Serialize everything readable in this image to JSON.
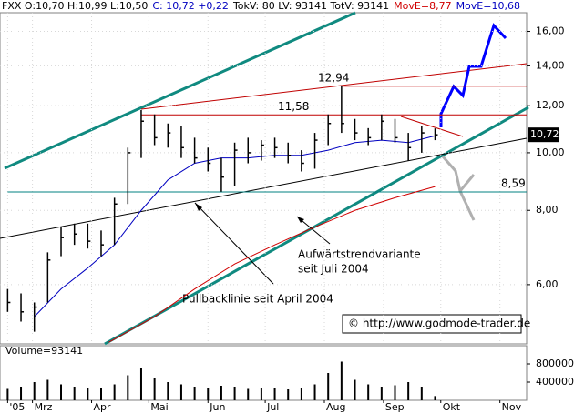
{
  "chart_data": {
    "type": "ohlc",
    "header": [
      {
        "text": "FXX O:10,70 H:10,99 L:10,50",
        "color": "#000000"
      },
      {
        "text": "C: 10,72 +0,22",
        "color": "#0000c0"
      },
      {
        "text": "TokV: 80 LV: 93141 TotV: 93141",
        "color": "#000000"
      },
      {
        "text": "MovE=8,77",
        "color": "#d00000"
      },
      {
        "text": "MovE=10,68",
        "color": "#0000c0"
      }
    ],
    "x": [
      47,
      54,
      61,
      68,
      75,
      82,
      89,
      96,
      103,
      110,
      117,
      124,
      131,
      138,
      145,
      152,
      159,
      166,
      173,
      180,
      187,
      194,
      201,
      208,
      215,
      222,
      229,
      236,
      243,
      250,
      257,
      264,
      271
    ],
    "high": [
      5.9,
      5.8,
      5.6,
      6.8,
      7.5,
      7.6,
      7.6,
      7.4,
      8.4,
      10.2,
      11.8,
      11.6,
      11.2,
      11.1,
      10.6,
      10.2,
      9.8,
      10.4,
      10.6,
      10.5,
      10.6,
      10.4,
      10.1,
      10.8,
      11.6,
      12.94,
      11.4,
      11.0,
      11.6,
      11.4,
      10.8,
      11.1,
      10.99
    ],
    "low": [
      5.4,
      5.2,
      5.0,
      5.6,
      6.7,
      7.0,
      6.9,
      6.7,
      7.0,
      8.2,
      9.8,
      10.3,
      10.2,
      9.8,
      9.6,
      9.3,
      8.6,
      8.8,
      9.6,
      9.7,
      9.8,
      9.6,
      9.3,
      9.4,
      10.3,
      10.8,
      10.5,
      10.3,
      10.5,
      10.4,
      9.7,
      10.0,
      10.5
    ],
    "close": [
      5.6,
      5.4,
      5.5,
      6.6,
      7.2,
      7.3,
      7.1,
      7.0,
      8.2,
      10.0,
      11.3,
      10.6,
      10.8,
      10.2,
      9.8,
      9.6,
      9.1,
      10.1,
      10.0,
      10.3,
      10.2,
      9.9,
      9.6,
      10.5,
      11.2,
      11.2,
      10.8,
      10.6,
      11.3,
      10.6,
      10.2,
      10.8,
      10.72
    ],
    "averages": [
      {
        "color": "#0000c0",
        "x": [
          61,
          75,
          89,
          103,
          117,
          131,
          145,
          159,
          173,
          187,
          201,
          215,
          229,
          243,
          257,
          271
        ],
        "values": [
          5.3,
          5.9,
          6.4,
          7.0,
          8.0,
          9.0,
          9.6,
          9.8,
          9.8,
          9.9,
          9.9,
          10.1,
          10.4,
          10.5,
          10.4,
          10.68
        ]
      },
      {
        "color": "#d00000",
        "x": [
          100,
          124,
          145,
          166,
          187,
          208,
          229,
          250,
          271
        ],
        "values": [
          4.8,
          5.3,
          5.9,
          6.5,
          7.0,
          7.5,
          8.0,
          8.4,
          8.77
        ]
      }
    ],
    "bar_color": "#000000",
    "xlim": [
      43,
      319
    ],
    "xticks": [
      {
        "value": 47,
        "label": "'05"
      },
      {
        "value": 60,
        "label": "Mrz"
      },
      {
        "value": 91,
        "label": "Apr"
      },
      {
        "value": 121,
        "label": "Mai"
      },
      {
        "value": 152,
        "label": "Jun"
      },
      {
        "value": 182,
        "label": "Jul"
      },
      {
        "value": 213,
        "label": "Aug"
      },
      {
        "value": 244,
        "label": "Sep"
      },
      {
        "value": 274,
        "label": "Okt"
      },
      {
        "value": 305,
        "label": "Nov"
      }
    ],
    "ylim": [
      4.77,
      17.2
    ],
    "log_scale": true,
    "grid": true,
    "yticks": [
      {
        "value": 6,
        "label": "6,00"
      },
      {
        "value": 8,
        "label": "8,00"
      },
      {
        "value": 10,
        "label": "10,00"
      },
      {
        "value": 12,
        "label": "12,00"
      },
      {
        "value": 14,
        "label": "14,00"
      },
      {
        "value": 16,
        "label": "16,00"
      }
    ],
    "levels": [
      {
        "value": 12.94,
        "label": "12,94",
        "color": "#c00000"
      },
      {
        "value": 11.58,
        "label": "11,58",
        "color": "#c00000"
      },
      {
        "value": 8.59,
        "label": "8,59",
        "color": "#008080"
      }
    ],
    "last": {
      "value": 10.72,
      "label": "10,72"
    },
    "notes": [
      "Aufwärtstrendvariante",
      "seit Juli 2004",
      "Pullbacklinie seit April 2004",
      "© http://www.godmode-trader.de"
    ],
    "volume_label": "Volume=93141",
    "volume": [
      250000,
      300000,
      400000,
      450000,
      350000,
      300000,
      280000,
      260000,
      350000,
      550000,
      700000,
      500000,
      400000,
      350000,
      300000,
      280000,
      320000,
      300000,
      250000,
      270000,
      260000,
      240000,
      280000,
      350000,
      600000,
      850000,
      450000,
      350000,
      300000,
      330000,
      400000,
      300000,
      93141
    ],
    "volume_ylim": [
      0,
      1200000
    ],
    "volume_yticks": [
      400000,
      800000
    ]
  }
}
